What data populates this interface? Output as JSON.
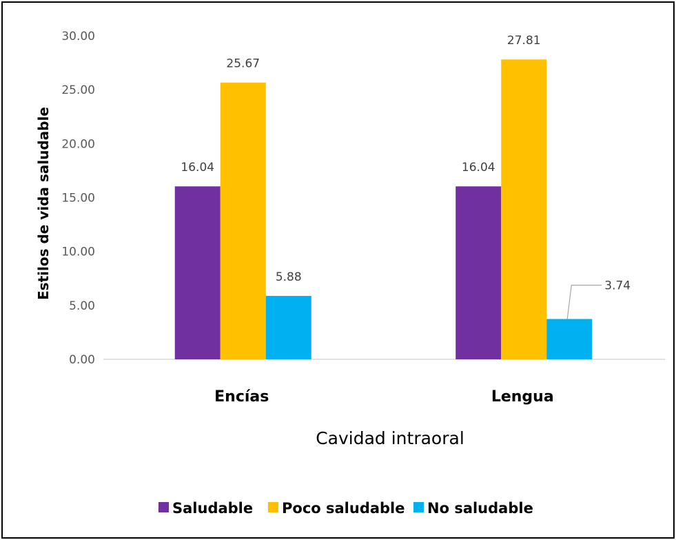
{
  "chart_data": {
    "type": "bar",
    "title": "",
    "xlabel": "Cavidad intraoral",
    "ylabel": "Estilos de vida saludable",
    "categories": [
      "Encías",
      "Lengua"
    ],
    "series": [
      {
        "name": "Saludable",
        "values": [
          16.04,
          16.04
        ],
        "labels": [
          "16.04",
          "16.04"
        ],
        "color": "#7030a0"
      },
      {
        "name": "Poco saludable",
        "values": [
          25.67,
          27.81
        ],
        "labels": [
          "25.67",
          "27.81"
        ],
        "color": "#ffc000"
      },
      {
        "name": "No saludable",
        "values": [
          5.88,
          3.74
        ],
        "labels": [
          "5.88",
          "3.74"
        ],
        "color": "#00b0f0"
      }
    ],
    "ylim": [
      0,
      30
    ],
    "yticks": [
      "0.00",
      "5.00",
      "10.00",
      "15.00",
      "20.00",
      "25.00",
      "30.00"
    ],
    "grid": false,
    "legend_position": "bottom"
  }
}
